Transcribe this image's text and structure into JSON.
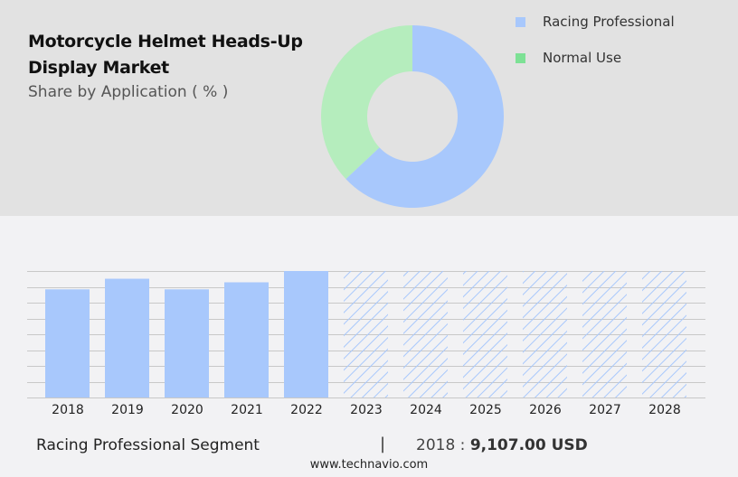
{
  "header": {
    "title_line1": "Motorcycle Helmet Heads-Up",
    "title_line2": "Display Market",
    "subtitle": "Share by Application ( % )"
  },
  "legend": [
    {
      "label": "Racing Professional",
      "color": "#a8c8fc"
    },
    {
      "label": "Normal Use",
      "color": "#7de195"
    }
  ],
  "footer": {
    "segment": "Racing Professional Segment",
    "separator": "|",
    "year": "2018 :",
    "value": "9,107.00 USD",
    "site": "www.technavio.com"
  },
  "chart_data": [
    {
      "type": "pie",
      "subtype": "donut",
      "title": "Motorcycle Helmet Heads-Up Display Market",
      "subtitle": "Share by Application ( % )",
      "categories": [
        "Racing Professional",
        "Normal Use"
      ],
      "values": [
        63,
        37
      ],
      "colors": [
        "#a8c8fc",
        "#b5edbd"
      ],
      "legend_position": "right"
    },
    {
      "type": "bar",
      "title": "Racing Professional Segment",
      "categories": [
        "2018",
        "2019",
        "2020",
        "2021",
        "2022",
        "2023",
        "2024",
        "2025",
        "2026",
        "2027",
        "2028"
      ],
      "values": [
        9107,
        10000,
        9107,
        9700,
        10650,
        null,
        null,
        null,
        null,
        null,
        null
      ],
      "forecast_hatched": [
        "2023",
        "2024",
        "2025",
        "2026",
        "2027",
        "2028"
      ],
      "xlabel": "",
      "ylabel": "",
      "grid": true,
      "bar_color": "#a8c8fc",
      "annotation": "2018 : 9,107.00 USD"
    }
  ]
}
